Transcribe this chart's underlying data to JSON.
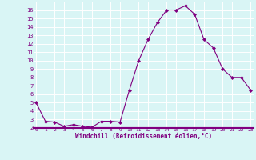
{
  "x": [
    0,
    1,
    2,
    3,
    4,
    5,
    6,
    7,
    8,
    9,
    10,
    11,
    12,
    13,
    14,
    15,
    16,
    17,
    18,
    19,
    20,
    21,
    22,
    23
  ],
  "y": [
    5.0,
    2.8,
    2.7,
    2.2,
    2.4,
    2.2,
    2.1,
    2.8,
    2.8,
    2.7,
    6.5,
    10.0,
    12.5,
    14.5,
    16.0,
    16.0,
    16.5,
    15.5,
    12.5,
    11.5,
    9.0,
    8.0,
    8.0,
    6.5
  ],
  "line_color": "#800080",
  "marker": "D",
  "marker_size": 2,
  "background_color": "#d9f5f5",
  "grid_color": "#ffffff",
  "xlabel": "Windchill (Refroidissement éolien,°C)",
  "xlabel_color": "#800080",
  "tick_color": "#800080",
  "ylim": [
    2,
    17
  ],
  "yticks": [
    2,
    3,
    4,
    5,
    6,
    7,
    8,
    9,
    10,
    11,
    12,
    13,
    14,
    15,
    16
  ],
  "xticks": [
    0,
    1,
    2,
    3,
    4,
    5,
    6,
    7,
    8,
    9,
    10,
    11,
    12,
    13,
    14,
    15,
    16,
    17,
    18,
    19,
    20,
    21,
    22,
    23
  ],
  "spine_color": "#800080",
  "bottom_bar_color": "#800080"
}
